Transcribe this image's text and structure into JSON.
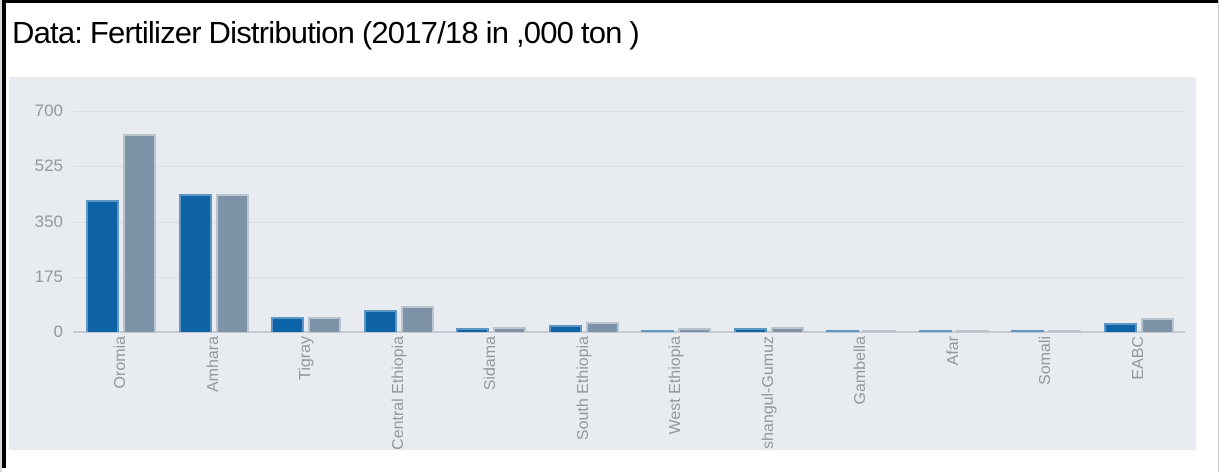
{
  "header": {
    "title": "Data: Fertilizer Distribution (2017/18 in ,000 ton )"
  },
  "colors": {
    "panel_background": "#e8ebf0",
    "gridline": "#d9dce3",
    "axis_line": "#c5c9d0",
    "tick_text": "#94979b",
    "frame": "#000000"
  },
  "chart_data": {
    "type": "bar",
    "title": "Data: Fertilizer Distribution (2017/18 in ,000 ton )",
    "xlabel": "",
    "ylabel": "",
    "ylim": [
      0,
      700
    ],
    "yticks": [
      0,
      175,
      350,
      525,
      700
    ],
    "grid": true,
    "legend": "none",
    "categories": [
      "Oromia",
      "Amhara",
      "Tigray",
      "Central Ethiopia",
      "Sidama",
      "South Ethiopia",
      "West Ethiopia",
      "Benishangul-Gumuz",
      "Gambella",
      "Afar",
      "Somali",
      "EABC"
    ],
    "series": [
      {
        "name": "blue",
        "color": "#0d63a5",
        "border_color": "#5e97c4",
        "values": [
          418,
          438,
          46,
          70,
          13,
          23,
          5,
          12,
          5,
          6,
          5,
          27
        ]
      },
      {
        "name": "gray",
        "color": "#7e93a7",
        "border_color": "#b9c4cf",
        "values": [
          628,
          436,
          47,
          83,
          17,
          33,
          12,
          15,
          4,
          5,
          4,
          43
        ]
      }
    ]
  }
}
